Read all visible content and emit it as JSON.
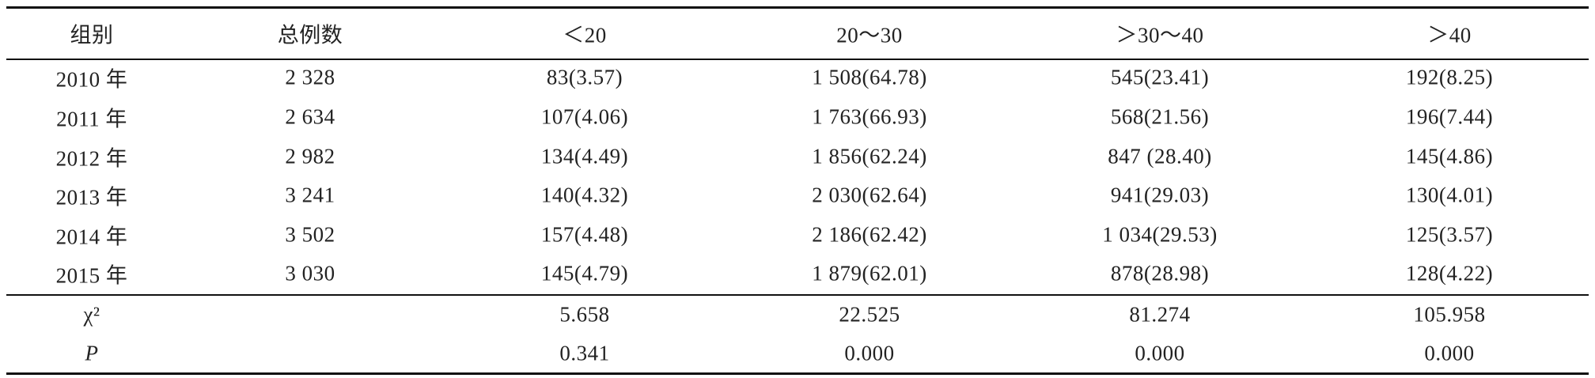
{
  "table": {
    "header": [
      "组别",
      "总例数",
      "＜20",
      "20～30",
      "＞30～40",
      "＞40"
    ],
    "rows": [
      [
        "2010 年",
        "2 328",
        "83(3.57)",
        "1 508(64.78)",
        "545(23.41)",
        "192(8.25)"
      ],
      [
        "2011 年",
        "2 634",
        "107(4.06)",
        "1 763(66.93)",
        "568(21.56)",
        "196(7.44)"
      ],
      [
        "2012 年",
        "2 982",
        "134(4.49)",
        "1 856(62.24)",
        "847 (28.40)",
        "145(4.86)"
      ],
      [
        "2013 年",
        "3 241",
        "140(4.32)",
        "2 030(62.64)",
        "941(29.03)",
        "130(4.01)"
      ],
      [
        "2014 年",
        "3 502",
        "157(4.48)",
        "2 186(62.42)",
        "1 034(29.53)",
        "125(3.57)"
      ],
      [
        "2015 年",
        "3 030",
        "145(4.79)",
        "1 879(62.01)",
        "878(28.98)",
        "128(4.22)"
      ]
    ],
    "stats": [
      {
        "label": "χ²",
        "values": [
          "5.658",
          "22.525",
          "81.274",
          "105.958"
        ]
      },
      {
        "label": "P",
        "values": [
          "0.341",
          "0.000",
          "0.000",
          "0.000"
        ]
      }
    ]
  }
}
